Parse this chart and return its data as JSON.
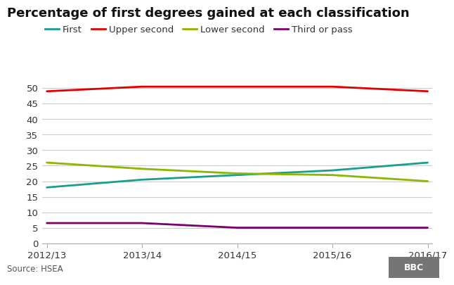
{
  "title": "Percentage of first degrees gained at each classification",
  "x_labels": [
    "2012/13",
    "2013/14",
    "2014/15",
    "2015/16",
    "2016/17"
  ],
  "x_values": [
    0,
    1,
    2,
    3,
    4
  ],
  "series_order": [
    "First",
    "Upper second",
    "Lower second",
    "Third or pass"
  ],
  "series": {
    "First": {
      "values": [
        18,
        20.5,
        22,
        23.5,
        26
      ],
      "color": "#1a9e8f",
      "linewidth": 2.0
    },
    "Upper second": {
      "values": [
        49,
        50.5,
        50.5,
        50.5,
        49
      ],
      "color": "#e00000",
      "linewidth": 2.0
    },
    "Lower second": {
      "values": [
        26,
        24,
        22.5,
        22,
        20
      ],
      "color": "#8db600",
      "linewidth": 2.0
    },
    "Third or pass": {
      "values": [
        6.5,
        6.5,
        5.0,
        5.0,
        5.0
      ],
      "color": "#7b006e",
      "linewidth": 2.0
    }
  },
  "ylim": [
    0,
    52
  ],
  "yticks": [
    0,
    5,
    10,
    15,
    20,
    25,
    30,
    35,
    40,
    45,
    50
  ],
  "source_text": "Source: HSEA",
  "background_color": "#ffffff",
  "grid_color": "#cccccc",
  "title_fontsize": 13,
  "legend_fontsize": 9.5,
  "tick_fontsize": 9.5,
  "source_fontsize": 8.5,
  "bbc_bg": "#757575"
}
